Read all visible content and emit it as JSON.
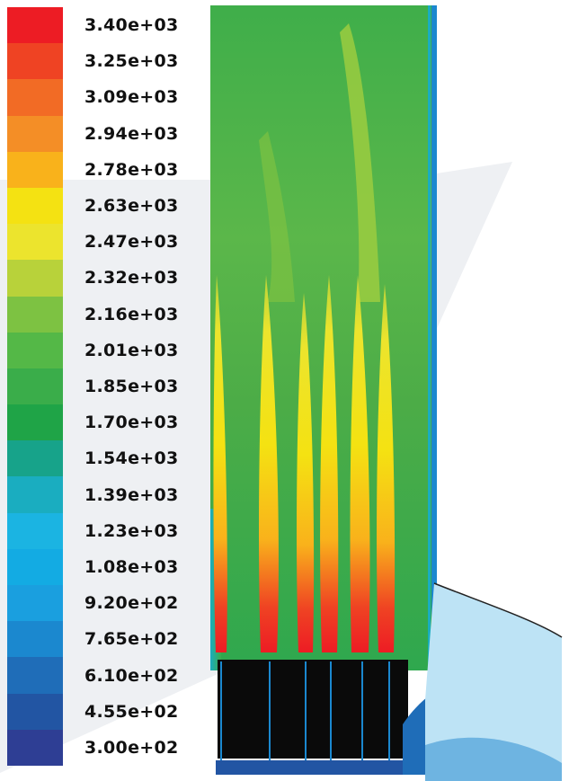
{
  "chart_data": {
    "type": "heatmap",
    "title": "",
    "colorbar": {
      "levels": [
        "3.40e+03",
        "3.25e+03",
        "3.09e+03",
        "2.94e+03",
        "2.78e+03",
        "2.63e+03",
        "2.47e+03",
        "2.32e+03",
        "2.16e+03",
        "2.01e+03",
        "1.85e+03",
        "1.70e+03",
        "1.54e+03",
        "1.39e+03",
        "1.23e+03",
        "1.08e+03",
        "9.20e+02",
        "7.65e+02",
        "6.10e+02",
        "4.55e+02",
        "3.00e+02"
      ],
      "min": 300,
      "max": 3400,
      "colors": [
        "#ed1c24",
        "#ef4323",
        "#f26b25",
        "#f48e26",
        "#f9b21b",
        "#f4e212",
        "#ece42d",
        "#b8d23a",
        "#7dc242",
        "#54b847",
        "#3aad4a",
        "#1fa447",
        "#17a38a",
        "#1aadc0",
        "#1bb4e2",
        "#13abe3",
        "#1a9fdf",
        "#1b88cf",
        "#1f6db8",
        "#2255a3",
        "#2e3e94"
      ]
    },
    "field": {
      "background_color": "#4cad48",
      "flames": 6,
      "flame_core_color": "#ed1c24"
    }
  }
}
